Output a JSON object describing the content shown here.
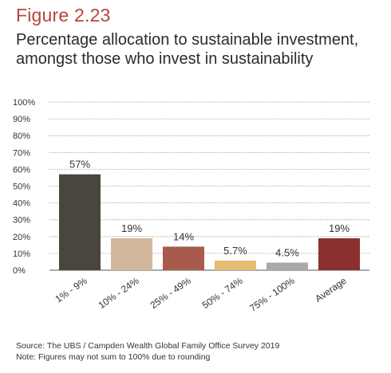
{
  "figure": {
    "label": "Figure 2.23",
    "title_lines": [
      "Percentage allocation to sustainable investment,",
      "amongst those who invest in sustainability"
    ]
  },
  "colors": {
    "figure_label": "#b5453c",
    "grid": "#9a9a9a",
    "axis": "#555555"
  },
  "chart_data": {
    "type": "bar",
    "title": "Percentage allocation to sustainable investment, amongst those who invest in sustainability",
    "xlabel": "",
    "ylabel": "",
    "ylim": [
      0,
      100
    ],
    "yticks": [
      "0%",
      "10%",
      "20%",
      "30%",
      "40%",
      "50%",
      "60%",
      "70%",
      "80%",
      "90%",
      "100%"
    ],
    "grid": true,
    "categories": [
      "1% - 9%",
      "10% - 24%",
      "25% - 49%",
      "50% - 74%",
      "75% - 100%",
      "Average"
    ],
    "values": [
      57,
      19,
      14,
      5.7,
      4.5,
      19
    ],
    "value_labels": [
      "57%",
      "19%",
      "14%",
      "5.7%",
      "4.5%",
      "19%"
    ],
    "bar_colors": [
      "#4a463d",
      "#d3b79a",
      "#a85a4c",
      "#e5bc74",
      "#a9a9a9",
      "#8b2f2f"
    ]
  },
  "footer": {
    "source": "Source: The UBS / Campden Wealth Global Family Office Survey 2019",
    "note": "Note: Figures may not sum to 100% due to rounding"
  }
}
